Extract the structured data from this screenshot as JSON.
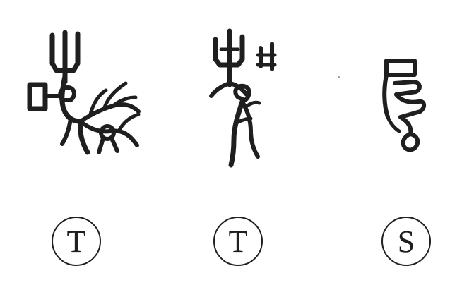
{
  "figures": [
    {
      "name": "glyph-1",
      "label": "T"
    },
    {
      "name": "glyph-2",
      "label": "T"
    },
    {
      "name": "glyph-3",
      "label": "S"
    }
  ],
  "colors": {
    "ink": "#1f1f1f",
    "background": "#ffffff"
  }
}
